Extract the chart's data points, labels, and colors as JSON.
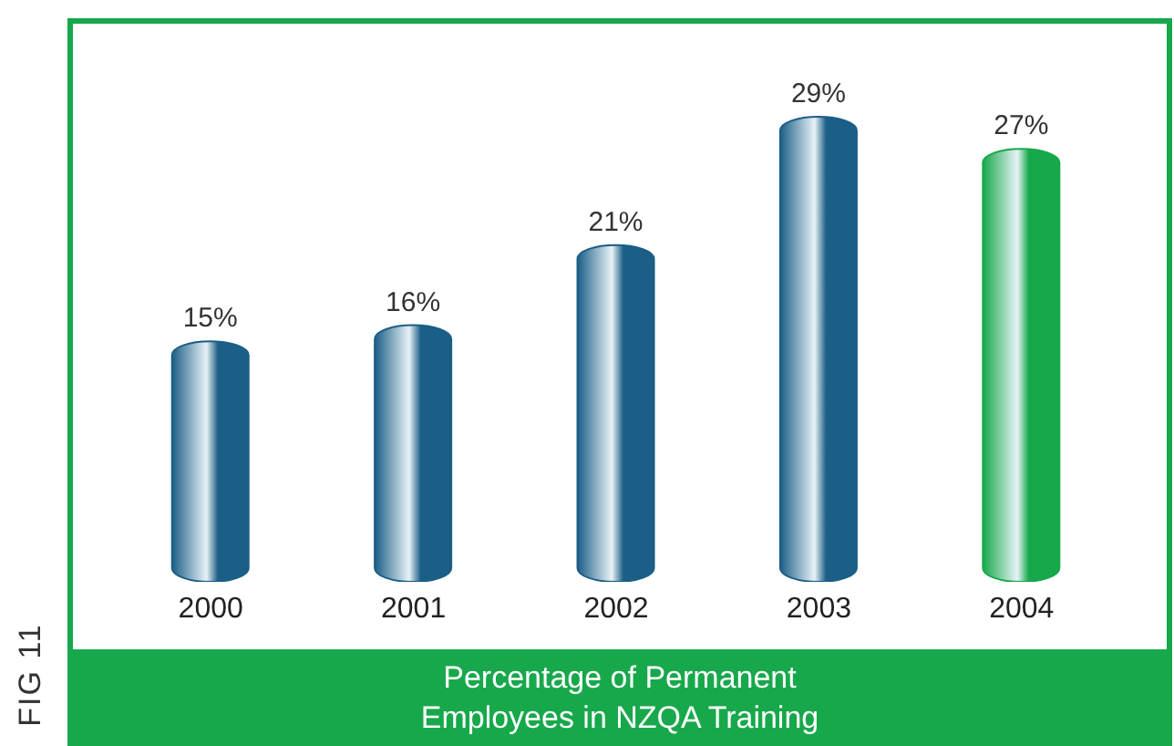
{
  "chart_data": {
    "type": "bar",
    "title": "Percentage of Permanent Employees in NZQA Training",
    "annotations": [
      "FIG 11"
    ],
    "categories": [
      "2000",
      "2001",
      "2002",
      "2003",
      "2004"
    ],
    "values": [
      15,
      16,
      21,
      29,
      27
    ],
    "colors": [
      "#1b5e86",
      "#1b5e86",
      "#1b5e86",
      "#1b5e86",
      "#17a84b"
    ],
    "value_labels": [
      "15%",
      "16%",
      "21%",
      "29%",
      "27%"
    ]
  }
}
